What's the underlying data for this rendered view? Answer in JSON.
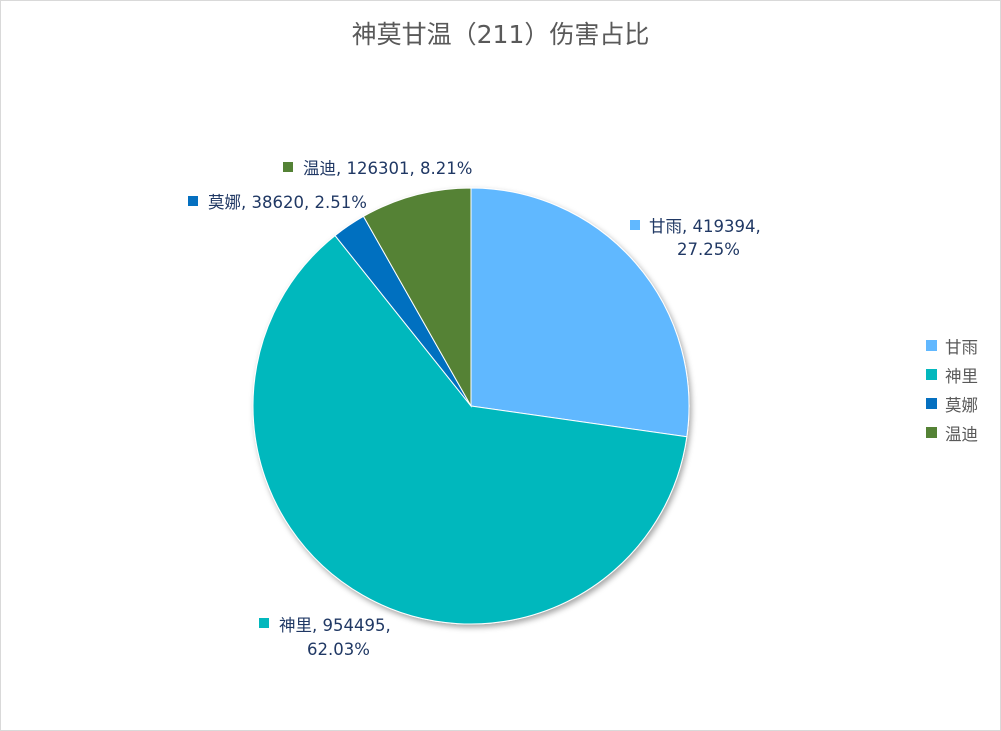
{
  "chart_data": {
    "type": "pie",
    "title": "神莫甘温（211）伤害占比",
    "slices": [
      {
        "name": "甘雨",
        "value": 419394,
        "percent": "27.25%",
        "color": "#61B8FF"
      },
      {
        "name": "神里",
        "value": 954495,
        "percent": "62.03%",
        "color": "#03B8BD"
      },
      {
        "name": "莫娜",
        "value": 38620,
        "percent": "2.51%",
        "color": "#0570C0"
      },
      {
        "name": "温迪",
        "value": 126301,
        "percent": "8.21%",
        "color": "#548235"
      }
    ],
    "legend_position": "right",
    "data_labels": {
      "ganyu": {
        "line1": "甘雨, 419394,",
        "line2": "27.25%"
      },
      "kamisato": {
        "line1": "神里, 954495,",
        "line2": "62.03%"
      },
      "mona": {
        "line1": "莫娜, 38620, 2.51%"
      },
      "venti": {
        "line1": "温迪, 126301, 8.21%"
      }
    },
    "legend": [
      "甘雨",
      "神里",
      "莫娜",
      "温迪"
    ]
  }
}
